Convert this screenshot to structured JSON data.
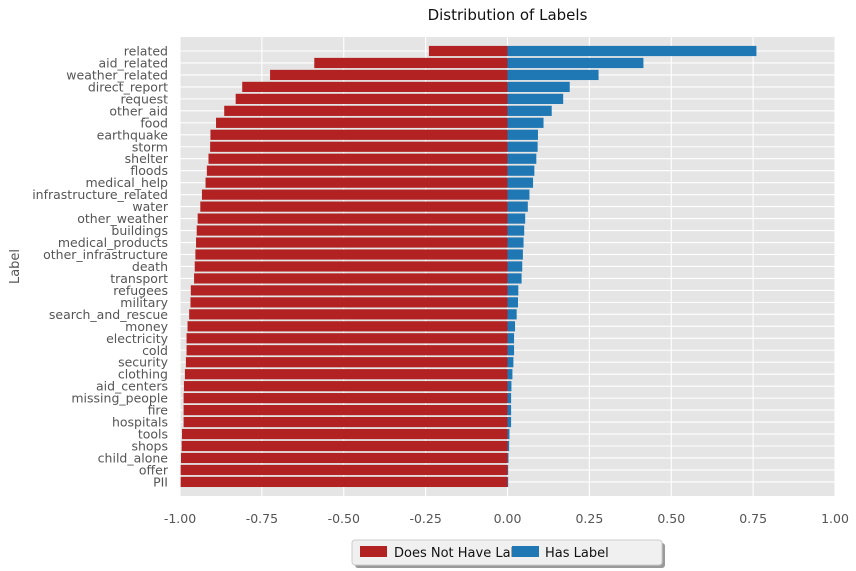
{
  "chart_data": {
    "type": "bar",
    "orientation": "horizontal",
    "title": "Distribution of Labels",
    "xlabel": "",
    "ylabel": "Label",
    "xlim": [
      -1.0,
      1.0
    ],
    "x_ticks": [
      "-1.00",
      "-0.75",
      "-0.50",
      "-0.25",
      "0.00",
      "0.25",
      "0.50",
      "0.75",
      "1.00"
    ],
    "grid": true,
    "legend_position": "bottom-center",
    "categories": [
      "related",
      "aid_related",
      "weather_related",
      "direct_report",
      "request",
      "other_aid",
      "food",
      "earthquake",
      "storm",
      "shelter",
      "floods",
      "medical_help",
      "infrastructure_related",
      "water",
      "other_weather",
      "buildings",
      "medical_products",
      "other_infrastructure",
      "death",
      "transport",
      "refugees",
      "military",
      "search_and_rescue",
      "money",
      "electricity",
      "cold",
      "security",
      "clothing",
      "aid_centers",
      "missing_people",
      "fire",
      "hospitals",
      "tools",
      "shops",
      "child_alone",
      "offer",
      "PII"
    ],
    "series": [
      {
        "name": "Does Not Have Label",
        "color": "#b22222",
        "values": [
          -0.24,
          -0.59,
          -0.725,
          -0.81,
          -0.83,
          -0.865,
          -0.89,
          -0.907,
          -0.908,
          -0.913,
          -0.918,
          -0.922,
          -0.933,
          -0.938,
          -0.946,
          -0.949,
          -0.951,
          -0.953,
          -0.955,
          -0.957,
          -0.967,
          -0.968,
          -0.972,
          -0.977,
          -0.98,
          -0.98,
          -0.982,
          -0.985,
          -0.988,
          -0.989,
          -0.989,
          -0.989,
          -0.994,
          -0.995,
          -0.997,
          -0.998,
          -0.998
        ]
      },
      {
        "name": "Has Label",
        "color": "#1f77b4",
        "values": [
          0.76,
          0.415,
          0.278,
          0.19,
          0.17,
          0.135,
          0.11,
          0.093,
          0.092,
          0.088,
          0.082,
          0.078,
          0.067,
          0.062,
          0.054,
          0.051,
          0.049,
          0.047,
          0.045,
          0.043,
          0.033,
          0.032,
          0.028,
          0.023,
          0.02,
          0.02,
          0.018,
          0.015,
          0.012,
          0.011,
          0.011,
          0.011,
          0.006,
          0.005,
          0.003,
          0.002,
          0.002
        ]
      }
    ]
  }
}
